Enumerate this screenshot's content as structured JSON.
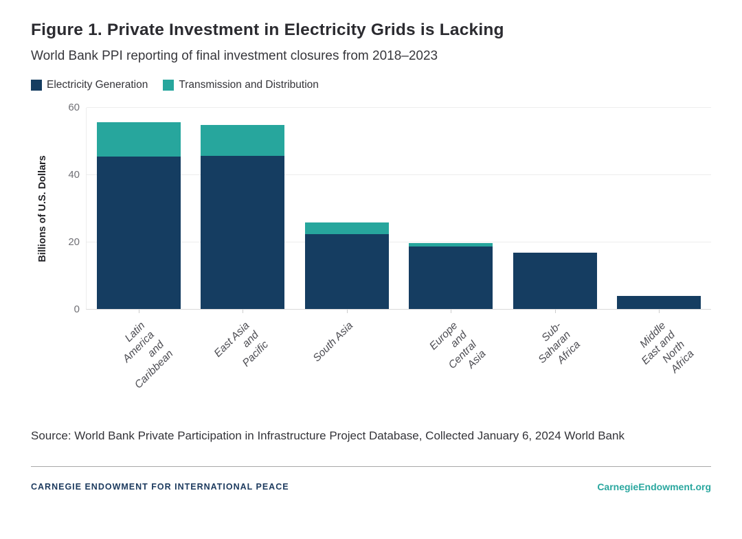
{
  "figure": {
    "title": "Figure 1. Private Investment in Electricity Grids is Lacking",
    "subtitle": "World Bank PPI reporting of final investment closures from 2018–2023",
    "source": "Source: World Bank Private Participation in Infrastructure Project Database, Collected January 6, 2024 World Bank"
  },
  "footer": {
    "org": "CARNEGIE ENDOWMENT FOR INTERNATIONAL PEACE",
    "site": "CarnegieEndowment.org"
  },
  "colors": {
    "generation": "#17406A",
    "generation_bar": "#153D61",
    "transmission": "#27A69D",
    "grid": "#ededed",
    "footer_navy": "#1c3a5e",
    "footer_teal": "#2aa79f"
  },
  "chart_data": {
    "type": "bar",
    "stacked": true,
    "title": "Figure 1. Private Investment in Electricity Grids is Lacking",
    "subtitle": "World Bank PPI reporting of final investment closures from 2018–2023",
    "categories": [
      "Latin America and\nCaribbean",
      "East Asia and Pacific",
      "South Asia",
      "Europe and Central\nAsia",
      "Sub-Saharan Africa",
      "Middle East and North\nAfrica"
    ],
    "series": [
      {
        "name": "Electricity Generation",
        "color": "#153D61",
        "values": [
          45.3,
          45.5,
          22.3,
          18.6,
          16.7,
          3.9
        ]
      },
      {
        "name": "Transmission and Distribution",
        "color": "#27A69D",
        "values": [
          10.3,
          9.2,
          3.4,
          1.1,
          0,
          0
        ]
      }
    ],
    "totals": [
      55.6,
      54.7,
      25.7,
      19.7,
      16.7,
      3.9
    ],
    "xlabel": "",
    "ylabel": "Billions of U.S. Dollars",
    "yticks": [
      0,
      20,
      40,
      60
    ],
    "ylim": [
      0,
      60
    ],
    "grid": true,
    "legend_position": "top-left"
  }
}
